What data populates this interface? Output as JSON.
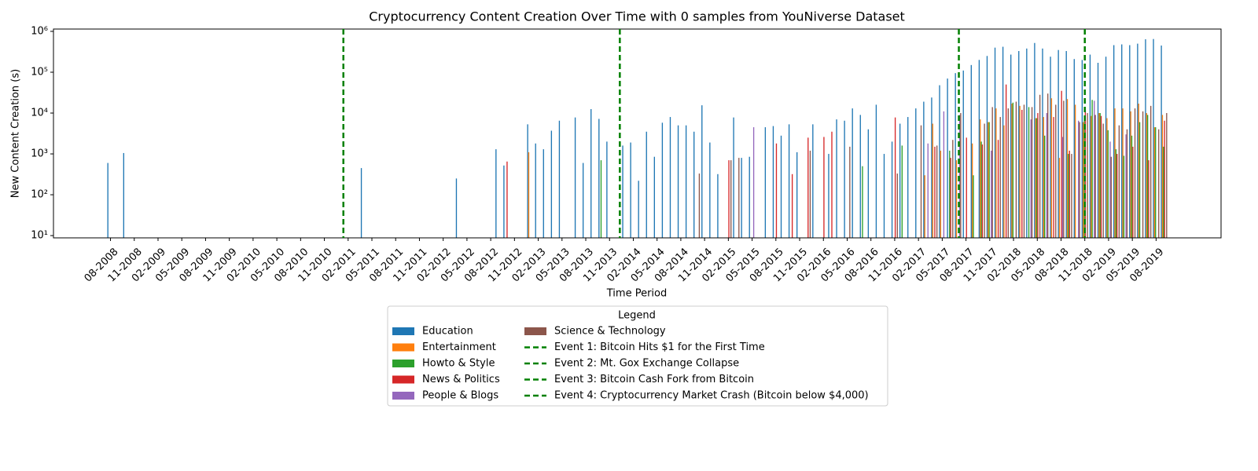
{
  "chart_data": {
    "type": "bar",
    "title": "Cryptocurrency Content Creation Over Time with 0 samples from YouNiverse Dataset",
    "x_label": "Time Period",
    "y_label": "New Content Creation (s)",
    "log_scale": true,
    "xlim": [
      -7.2,
      140.2
    ],
    "ylim": [
      8.8,
      1140000
    ],
    "yticks": [
      {
        "value": 10,
        "label": "10¹"
      },
      {
        "value": 100,
        "label": "10²"
      },
      {
        "value": 1000,
        "label": "10³"
      },
      {
        "value": 10000,
        "label": "10⁴"
      },
      {
        "value": 100000,
        "label": "10⁵"
      },
      {
        "value": 1000000,
        "label": "10⁶"
      }
    ],
    "legend_title": "Legend",
    "categories": [
      "08-2008",
      null,
      null,
      "11-2008",
      null,
      null,
      "02-2009",
      null,
      null,
      "05-2009",
      null,
      null,
      "08-2009",
      null,
      null,
      "11-2009",
      null,
      null,
      "02-2010",
      null,
      null,
      "05-2010",
      null,
      null,
      "08-2010",
      null,
      null,
      "11-2010",
      null,
      null,
      "02-2011",
      null,
      null,
      "05-2011",
      null,
      null,
      "08-2011",
      null,
      null,
      "11-2011",
      null,
      null,
      "02-2012",
      null,
      null,
      "05-2012",
      null,
      null,
      "08-2012",
      null,
      null,
      "11-2012",
      null,
      null,
      "02-2013",
      null,
      null,
      "05-2013",
      null,
      null,
      "08-2013",
      null,
      null,
      "11-2013",
      null,
      null,
      "02-2014",
      null,
      null,
      "05-2014",
      null,
      null,
      "08-2014",
      null,
      null,
      "11-2014",
      null,
      null,
      "02-2015",
      null,
      null,
      "05-2015",
      null,
      null,
      "08-2015",
      null,
      null,
      "11-2015",
      null,
      null,
      "02-2016",
      null,
      null,
      "05-2016",
      null,
      null,
      "08-2016",
      null,
      null,
      "11-2016",
      null,
      null,
      "02-2017",
      null,
      null,
      "05-2017",
      null,
      null,
      "08-2017",
      null,
      null,
      "11-2017",
      null,
      null,
      "02-2018",
      null,
      null,
      "05-2018",
      null,
      null,
      "08-2018",
      null,
      null,
      "11-2018",
      null,
      null,
      "02-2019",
      null,
      null,
      "05-2019",
      null,
      null,
      "08-2019",
      null
    ],
    "series": [
      {
        "name": "Education",
        "color": "#1f77b4",
        "values": [
          600,
          null,
          1050,
          null,
          null,
          null,
          null,
          null,
          null,
          null,
          null,
          null,
          null,
          null,
          null,
          null,
          null,
          null,
          null,
          null,
          null,
          null,
          null,
          null,
          null,
          null,
          null,
          null,
          null,
          null,
          null,
          null,
          450,
          null,
          null,
          null,
          null,
          null,
          null,
          null,
          null,
          null,
          null,
          null,
          250,
          null,
          null,
          null,
          null,
          1300,
          520,
          null,
          null,
          5300,
          1800,
          1300,
          3700,
          6500,
          null,
          7800,
          600,
          12500,
          7200,
          2000,
          null,
          1600,
          1900,
          220,
          3500,
          850,
          5800,
          8000,
          5000,
          5000,
          3500,
          15500,
          1900,
          320,
          null,
          7800,
          800,
          850,
          null,
          4500,
          4800,
          2800,
          5300,
          1100,
          null,
          5300,
          null,
          1000,
          7000,
          6500,
          13000,
          9000,
          4000,
          16000,
          1000,
          2000,
          5500,
          8000,
          13000,
          19000,
          24000,
          48000,
          70000,
          95000,
          110000,
          150000,
          200000,
          250000,
          400000,
          420000,
          270000,
          330000,
          380000,
          520000,
          380000,
          240000,
          350000,
          330000,
          210000,
          200000,
          270000,
          170000,
          240000,
          460000,
          480000,
          460000,
          500000,
          640000,
          650000,
          450000
        ]
      },
      {
        "name": "Entertainment",
        "color": "#ff7f0e",
        "values": [
          null,
          null,
          null,
          null,
          null,
          null,
          null,
          null,
          null,
          null,
          null,
          null,
          null,
          null,
          null,
          null,
          null,
          null,
          null,
          null,
          null,
          null,
          null,
          null,
          null,
          null,
          null,
          null,
          null,
          null,
          null,
          null,
          null,
          null,
          null,
          null,
          null,
          null,
          null,
          null,
          null,
          null,
          null,
          null,
          null,
          null,
          null,
          null,
          null,
          null,
          null,
          null,
          null,
          1100,
          null,
          null,
          null,
          null,
          null,
          null,
          null,
          null,
          null,
          null,
          null,
          null,
          null,
          null,
          null,
          null,
          null,
          null,
          null,
          null,
          null,
          null,
          null,
          null,
          null,
          null,
          null,
          null,
          null,
          null,
          null,
          null,
          null,
          null,
          null,
          null,
          null,
          null,
          null,
          null,
          null,
          null,
          null,
          null,
          null,
          null,
          null,
          null,
          null,
          300,
          5500,
          1200,
          null,
          700,
          null,
          1800,
          7000,
          6000,
          13000,
          5000,
          17000,
          15000,
          null,
          7500,
          8000,
          23000,
          800,
          22000,
          16000,
          6000,
          8500,
          10000,
          7500,
          13000,
          13000,
          11000,
          17000,
          10000,
          4500,
          9000
        ]
      },
      {
        "name": "Howto & Style",
        "color": "#2ca02c",
        "values": [
          null,
          null,
          null,
          null,
          null,
          null,
          null,
          null,
          null,
          null,
          null,
          null,
          null,
          null,
          null,
          null,
          null,
          null,
          null,
          null,
          null,
          null,
          null,
          null,
          null,
          null,
          null,
          null,
          null,
          null,
          null,
          null,
          null,
          null,
          null,
          null,
          null,
          null,
          null,
          null,
          null,
          null,
          null,
          null,
          null,
          null,
          null,
          null,
          null,
          null,
          null,
          null,
          null,
          null,
          null,
          null,
          null,
          null,
          null,
          null,
          null,
          null,
          700,
          null,
          null,
          null,
          null,
          null,
          null,
          null,
          null,
          null,
          null,
          null,
          null,
          null,
          null,
          null,
          null,
          null,
          null,
          null,
          null,
          null,
          null,
          null,
          null,
          null,
          null,
          null,
          null,
          null,
          null,
          null,
          null,
          500,
          null,
          null,
          null,
          null,
          1600,
          null,
          null,
          null,
          null,
          null,
          1200,
          null,
          null,
          300,
          2000,
          6000,
          null,
          null,
          18000,
          null,
          14000,
          7500,
          2800,
          null,
          null,
          1000,
          null,
          6500,
          21000,
          10000,
          3800,
          1300,
          900,
          2800,
          6000,
          9000,
          4500,
          1500
        ]
      },
      {
        "name": "News & Politics",
        "color": "#d62728",
        "values": [
          null,
          null,
          null,
          null,
          null,
          null,
          null,
          null,
          null,
          null,
          null,
          null,
          null,
          null,
          null,
          null,
          null,
          null,
          null,
          null,
          null,
          null,
          null,
          null,
          null,
          null,
          null,
          null,
          null,
          null,
          null,
          null,
          null,
          null,
          null,
          null,
          null,
          null,
          null,
          null,
          null,
          null,
          null,
          null,
          null,
          null,
          null,
          null,
          null,
          null,
          650,
          null,
          null,
          null,
          null,
          null,
          null,
          null,
          null,
          null,
          null,
          null,
          null,
          null,
          null,
          null,
          null,
          null,
          null,
          null,
          null,
          null,
          null,
          null,
          null,
          null,
          null,
          null,
          700,
          null,
          null,
          null,
          null,
          null,
          1800,
          null,
          320,
          null,
          2500,
          null,
          2600,
          3500,
          null,
          null,
          null,
          null,
          null,
          null,
          null,
          7800,
          null,
          null,
          null,
          null,
          1500,
          null,
          800,
          null,
          2500,
          null,
          1700,
          null,
          2200,
          50000,
          null,
          12000,
          null,
          10000,
          null,
          8000,
          35000,
          1200,
          null,
          12000,
          null,
          8500,
          null,
          1000,
          null,
          1500,
          null,
          700,
          null,
          6500
        ]
      },
      {
        "name": "People & Blogs",
        "color": "#9467bd",
        "values": [
          null,
          null,
          null,
          null,
          null,
          null,
          null,
          null,
          null,
          null,
          null,
          null,
          null,
          null,
          null,
          null,
          null,
          null,
          null,
          null,
          null,
          null,
          null,
          null,
          null,
          null,
          null,
          null,
          null,
          null,
          null,
          null,
          null,
          null,
          null,
          null,
          null,
          null,
          null,
          null,
          null,
          null,
          null,
          null,
          null,
          null,
          null,
          null,
          null,
          null,
          null,
          null,
          null,
          null,
          null,
          null,
          null,
          null,
          null,
          null,
          null,
          null,
          null,
          null,
          null,
          null,
          null,
          null,
          null,
          null,
          null,
          null,
          null,
          null,
          null,
          null,
          null,
          null,
          null,
          null,
          null,
          4500,
          null,
          null,
          null,
          null,
          null,
          null,
          null,
          null,
          null,
          null,
          null,
          null,
          null,
          null,
          null,
          null,
          null,
          null,
          null,
          null,
          null,
          1800,
          null,
          11000,
          null,
          9000,
          null,
          null,
          null,
          1200,
          null,
          null,
          null,
          null,
          7000,
          null,
          10000,
          null,
          2600,
          null,
          6500,
          null,
          20000,
          null,
          2000,
          null,
          3000,
          null,
          null,
          null,
          null,
          null
        ]
      },
      {
        "name": "Science & Technology",
        "color": "#8c564b",
        "values": [
          null,
          null,
          null,
          null,
          null,
          null,
          null,
          null,
          null,
          null,
          null,
          null,
          null,
          null,
          null,
          null,
          null,
          null,
          null,
          null,
          null,
          null,
          null,
          null,
          null,
          null,
          null,
          null,
          null,
          null,
          null,
          null,
          null,
          null,
          null,
          null,
          null,
          null,
          null,
          null,
          null,
          null,
          null,
          null,
          null,
          null,
          null,
          null,
          null,
          null,
          null,
          null,
          null,
          null,
          null,
          null,
          null,
          null,
          null,
          null,
          null,
          null,
          null,
          null,
          null,
          null,
          null,
          null,
          null,
          null,
          null,
          null,
          null,
          null,
          330,
          null,
          null,
          null,
          700,
          800,
          null,
          null,
          null,
          null,
          null,
          null,
          null,
          null,
          1200,
          null,
          null,
          null,
          null,
          1500,
          null,
          null,
          null,
          null,
          null,
          330,
          null,
          null,
          5000,
          null,
          1600,
          null,
          2200,
          10000,
          null,
          null,
          5500,
          14000,
          8000,
          13000,
          19000,
          16000,
          14000,
          28000,
          30000,
          16000,
          20000,
          1000,
          6000,
          10000,
          9000,
          5500,
          850,
          5000,
          4000,
          13000,
          11000,
          15000,
          4000,
          10000
        ]
      }
    ],
    "events": [
      {
        "name": "Event 1: Bitcoin Hits $1 for the First Time",
        "color": "#008000",
        "x": 29.4
      },
      {
        "name": "Event 2: Mt. Gox Exchange Collapse",
        "color": "#008000",
        "x": 64.3
      },
      {
        "name": "Event 3: Bitcoin Cash Fork from Bitcoin",
        "color": "#008000",
        "x": 107.1
      },
      {
        "name": "Event 4: Cryptocurrency Market Crash (Bitcoin below $4,000)",
        "color": "#008000",
        "x": 123.0
      }
    ]
  }
}
